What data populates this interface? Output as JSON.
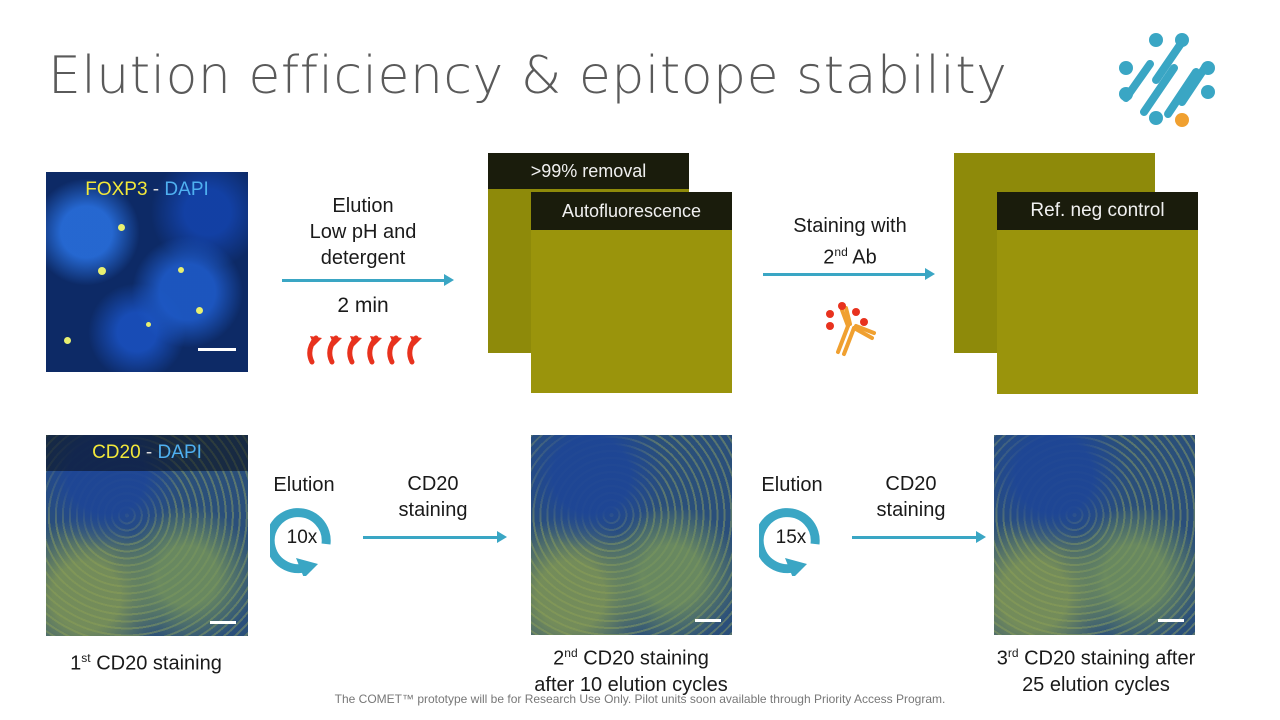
{
  "title": "Elution efficiency & epitope stability",
  "top_row": {
    "image1_label_marker": "FOXP3",
    "image1_label_sep": " - ",
    "image1_label_dapi": "DAPI",
    "step1_line1": "Elution",
    "step1_line2": "Low pH and",
    "step1_line3": "detergent",
    "step1_time": "2 min",
    "removal_label": ">99% removal",
    "autofluorescence_label": "Autofluorescence",
    "step2_line1": "Staining  with",
    "step2_line2a": "2",
    "step2_sup": "nd",
    "step2_line2b": " Ab",
    "ref_label": "Ref. neg control"
  },
  "bottom_row": {
    "image1_label_marker": "CD20",
    "image1_label_sep": " - ",
    "image1_label_dapi": "DAPI",
    "cycle1_label": "Elution",
    "cycle1_count": "10x",
    "stain1_line1": "CD20",
    "stain1_line2": "staining",
    "cycle2_label": "Elution",
    "cycle2_count": "15x",
    "stain2_line1": "CD20",
    "stain2_line2": "staining",
    "cap1_a": "1",
    "cap1_sup": "st",
    "cap1_b": " CD20 staining",
    "cap2_a": "2",
    "cap2_sup": "nd",
    "cap2_b": " CD20 staining",
    "cap2_line2": "after 10 elution cycles",
    "cap3_a": "3",
    "cap3_sup": "rd",
    "cap3_b": " CD20 staining after",
    "cap3_line2": "25 elution cycles"
  },
  "footnote": "The COMET™ prototype will be for Research Use Only. Pilot units soon available through Priority Access Program.",
  "colors": {
    "accent": "#3aa6c4",
    "heat": "#e8321e",
    "logo_dot": "#f0a030"
  }
}
